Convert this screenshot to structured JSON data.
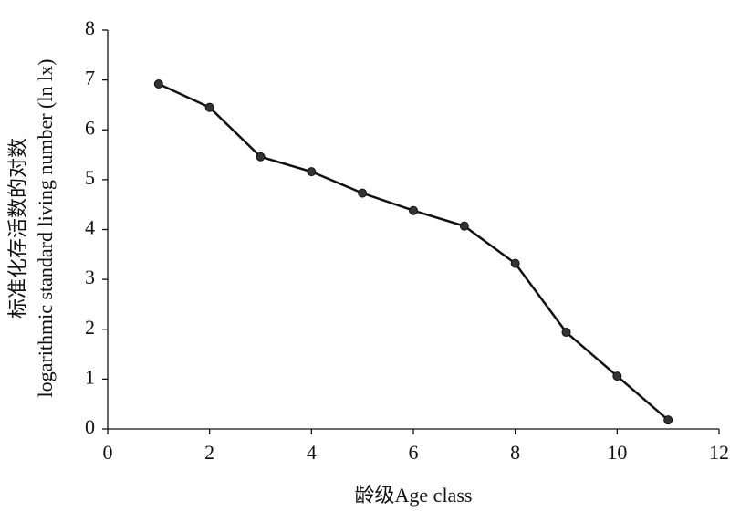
{
  "chart_data": {
    "type": "line",
    "ylabel_zh": "标准化存活数的对数",
    "ylabel_en": "logarithmic standard living number (ln lx)",
    "xlabel": "龄级Age class",
    "x": [
      1,
      2,
      3,
      4,
      5,
      6,
      7,
      8,
      9,
      10,
      11
    ],
    "series": [
      {
        "name": "ln lx",
        "color": "#111111",
        "values": [
          6.92,
          6.45,
          5.46,
          5.16,
          4.73,
          4.38,
          4.07,
          3.32,
          1.94,
          1.06,
          0.18
        ]
      }
    ],
    "xlim": [
      0,
      12
    ],
    "xticks": [
      0,
      2,
      4,
      6,
      8,
      10,
      12
    ],
    "ylim": [
      0,
      8
    ],
    "yticks": [
      0,
      1,
      2,
      3,
      4,
      5,
      6,
      7,
      8
    ],
    "grid": false
  }
}
